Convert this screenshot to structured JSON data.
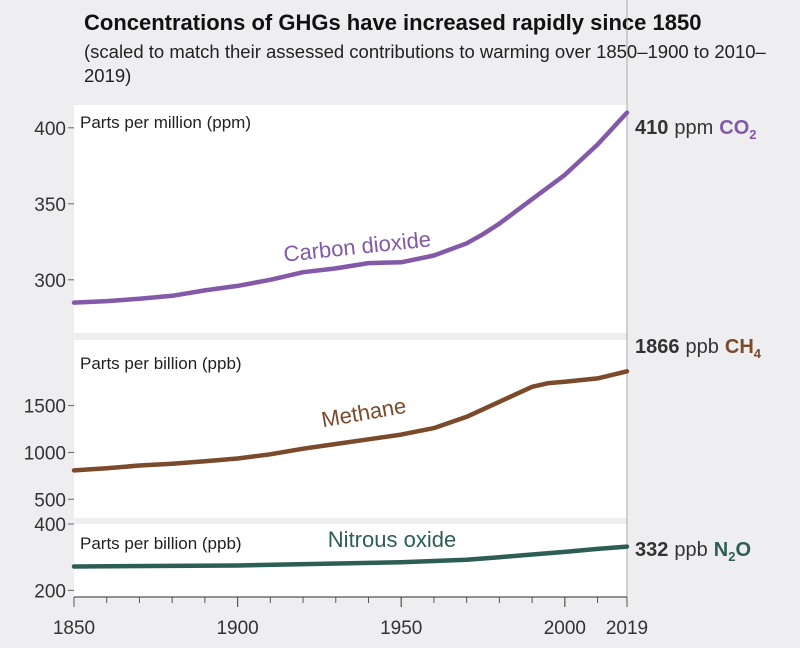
{
  "chart_data": {
    "type": "line",
    "title": "Concentrations of GHGs have increased rapidly since 1850",
    "subtitle": "(scaled to match their assessed contributions to warming over 1850–1900 to 2010–2019)",
    "xlim": [
      1850,
      2019
    ],
    "x_ticks": [
      {
        "value": 1850,
        "label": "1850"
      },
      {
        "value": 1900,
        "label": "1900"
      },
      {
        "value": 1950,
        "label": "1950"
      },
      {
        "value": 2000,
        "label": "2000"
      },
      {
        "value": 2019,
        "label": "2019"
      }
    ],
    "grid": false,
    "series": [
      {
        "name": "co2",
        "label": "Carbon dioxide",
        "unit_label": "Parts per million (ppm)",
        "color": "#8359a8",
        "ylim": [
          265,
          415
        ],
        "y_ticks": [
          300,
          350,
          400
        ],
        "end_value": "410",
        "end_unit": "ppm",
        "gas": "CO",
        "gas_sub": "2",
        "x": [
          1850,
          1860,
          1870,
          1880,
          1890,
          1900,
          1910,
          1920,
          1930,
          1940,
          1950,
          1960,
          1970,
          1975,
          1980,
          1990,
          2000,
          2010,
          2019
        ],
        "values": [
          285,
          286,
          287.5,
          289.5,
          293,
          296,
          300,
          305,
          307.5,
          311,
          311.5,
          316,
          324,
          330,
          337,
          353,
          369,
          389,
          410
        ]
      },
      {
        "name": "ch4",
        "label": "Methane",
        "unit_label": "Parts per billion (ppb)",
        "color": "#7a4a2a",
        "ylim": [
          300,
          2200
        ],
        "y_ticks": [
          500,
          1000,
          1500
        ],
        "end_value": "1866",
        "end_unit": "ppb",
        "gas": "CH",
        "gas_sub": "4",
        "x": [
          1850,
          1860,
          1870,
          1880,
          1890,
          1900,
          1910,
          1920,
          1930,
          1940,
          1950,
          1960,
          1970,
          1975,
          1980,
          1985,
          1990,
          1995,
          2000,
          2010,
          2019
        ],
        "values": [
          808,
          830,
          860,
          880,
          905,
          935,
          980,
          1040,
          1090,
          1140,
          1190,
          1260,
          1380,
          1460,
          1540,
          1620,
          1700,
          1740,
          1755,
          1790,
          1866
        ]
      },
      {
        "name": "n2o",
        "label": "Nitrous oxide",
        "unit_label": "Parts per billion (ppb)",
        "color": "#2d5e55",
        "ylim": [
          180,
          400
        ],
        "y_ticks": [
          200,
          400
        ],
        "end_value": "332",
        "end_unit": "ppb",
        "gas": "N",
        "gas_sub": "2",
        "gas_after": "O",
        "x": [
          1850,
          1900,
          1950,
          1970,
          1980,
          1990,
          2000,
          2010,
          2019
        ],
        "values": [
          272,
          275,
          285,
          292,
          300,
          308,
          316,
          325,
          332
        ]
      }
    ]
  }
}
